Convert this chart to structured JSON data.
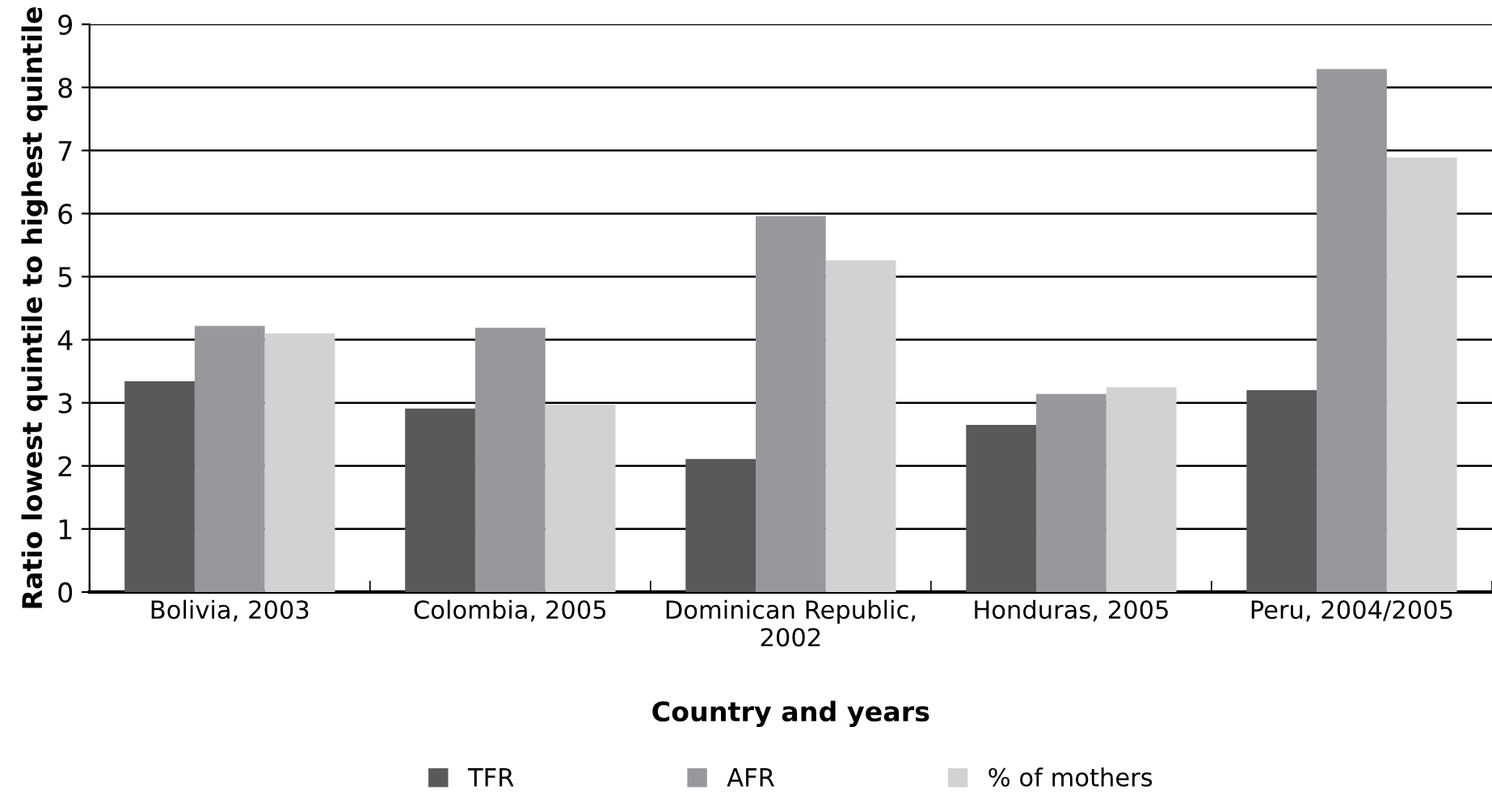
{
  "chart_data": {
    "type": "bar",
    "xlabel": "Country and years",
    "ylabel": "Ratio lowest quintile to highest quintile",
    "categories": [
      "Bolivia, 2003",
      "Colombia, 2005",
      "Dominican Republic,\n2002",
      "Honduras, 2005",
      "Peru, 2004/2005"
    ],
    "series": [
      {
        "name": "TFR",
        "color": "#58595b",
        "values": [
          3.34,
          2.91,
          2.11,
          2.65,
          3.2
        ]
      },
      {
        "name": "AFR",
        "color": "#97989b",
        "values": [
          4.22,
          4.19,
          5.96,
          3.14,
          8.29
        ]
      },
      {
        "name": "% of mothers",
        "color": "#d1d2d4",
        "values": [
          4.1,
          2.97,
          5.26,
          3.25,
          6.89
        ]
      }
    ],
    "ylim": [
      0,
      9
    ],
    "yticks": [
      0,
      1,
      2,
      3,
      4,
      5,
      6,
      7,
      8,
      9
    ],
    "grid": "y",
    "legend": "bottom"
  }
}
